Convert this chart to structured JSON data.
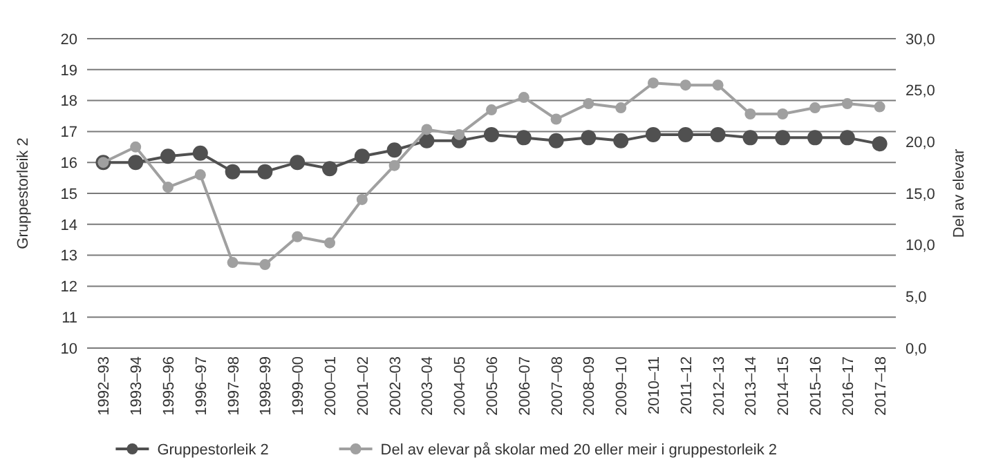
{
  "chart_data": {
    "type": "line",
    "ylabel": "Gruppestorleik 2",
    "y2label": "Del av elevar",
    "categories": [
      "1992–93",
      "1993–94",
      "1995–96",
      "1996–97",
      "1997–98",
      "1998–99",
      "1999–00",
      "2000–01",
      "2001–02",
      "2002–03",
      "2003–04",
      "2004–05",
      "2005–06",
      "2006–07",
      "2007–08",
      "2008–09",
      "2009–10",
      "2010–11",
      "2011–12",
      "2012–13",
      "2013–14",
      "2014–15",
      "2015–16",
      "2016–17",
      "2017–18"
    ],
    "series": [
      {
        "name": "Gruppestorleik 2",
        "color": "#505050",
        "values": [
          16.0,
          16.0,
          16.2,
          16.3,
          15.7,
          15.7,
          16.0,
          15.8,
          16.2,
          16.4,
          16.7,
          16.7,
          16.9,
          16.8,
          16.7,
          16.8,
          16.7,
          16.9,
          16.9,
          16.9,
          16.8,
          16.8,
          16.8,
          16.8,
          16.6
        ]
      },
      {
        "name": "Del av elevar på skolar med 20 eller meir i gruppestorleik 2",
        "color": "#a0a0a0",
        "axis": "y2",
        "values": [
          18.0,
          19.5,
          15.6,
          16.8,
          8.3,
          8.1,
          10.8,
          10.2,
          14.4,
          17.7,
          21.2,
          20.7,
          23.1,
          24.3,
          22.2,
          23.7,
          23.3,
          25.7,
          25.5,
          25.5,
          22.7,
          22.7,
          23.3,
          23.7,
          23.4
        ]
      }
    ],
    "ylim": [
      10,
      20
    ],
    "yticks": [
      10,
      11,
      12,
      13,
      14,
      15,
      16,
      17,
      18,
      19,
      20
    ],
    "y2lim": [
      0,
      30
    ],
    "y2ticks": [
      {
        "value": 0,
        "label": "0,0"
      },
      {
        "value": 5,
        "label": "5,0"
      },
      {
        "value": 10,
        "label": "10,0"
      },
      {
        "value": 15,
        "label": "15,0"
      },
      {
        "value": 20,
        "label": "20,0"
      },
      {
        "value": 25,
        "label": "25,0"
      },
      {
        "value": 30,
        "label": "30,0"
      }
    ],
    "grid": "y",
    "legend": "bottom",
    "marker": "circle",
    "line_style": "solid"
  }
}
